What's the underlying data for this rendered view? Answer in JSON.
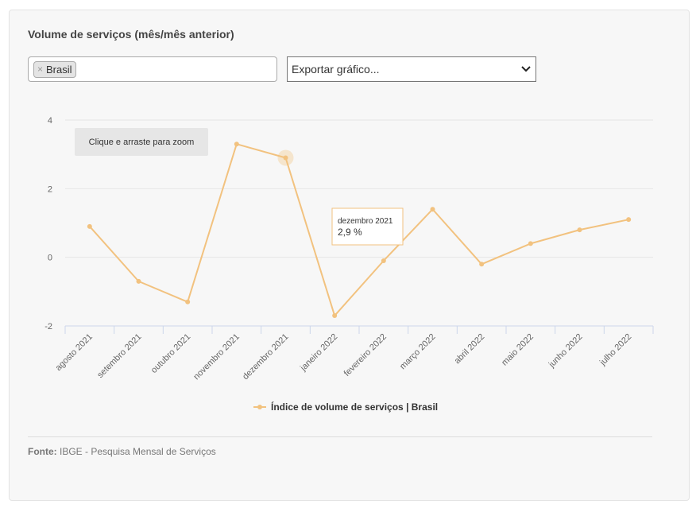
{
  "header": {
    "title": "Volume de serviços (mês/mês anterior)"
  },
  "filter": {
    "tag_remove": "×",
    "tag_label": "Brasil"
  },
  "export": {
    "label": "Exportar gráfico..."
  },
  "zoom_hint": "Clique e arraste para zoom",
  "tooltip": {
    "title": "dezembro 2021",
    "value": "2,9 %"
  },
  "footer": {
    "source_label": "Fonte:",
    "source_text": "IBGE - Pesquisa Mensal de Serviços"
  },
  "colors": {
    "series": "#f2c27f",
    "grid": "#e6e6e6",
    "axis": "#ccd6eb"
  },
  "chart_data": {
    "type": "line",
    "categories": [
      "agosto 2021",
      "setembro 2021",
      "outubro 2021",
      "novembro 2021",
      "dezembro 2021",
      "janeiro 2022",
      "fevereiro 2022",
      "março 2022",
      "abril 2022",
      "maio 2022",
      "junho 2022",
      "julho 2022"
    ],
    "series": [
      {
        "name": "Índice de volume de serviços | Brasil",
        "values": [
          0.9,
          -0.7,
          -1.3,
          3.3,
          2.9,
          -1.7,
          -0.1,
          1.4,
          -0.2,
          0.4,
          0.8,
          1.1
        ]
      }
    ],
    "yticks": [
      4,
      2,
      0,
      -2
    ],
    "ylim": [
      -2,
      4
    ],
    "grid": true,
    "legend": "bottom-center",
    "highlight_index": 4
  }
}
